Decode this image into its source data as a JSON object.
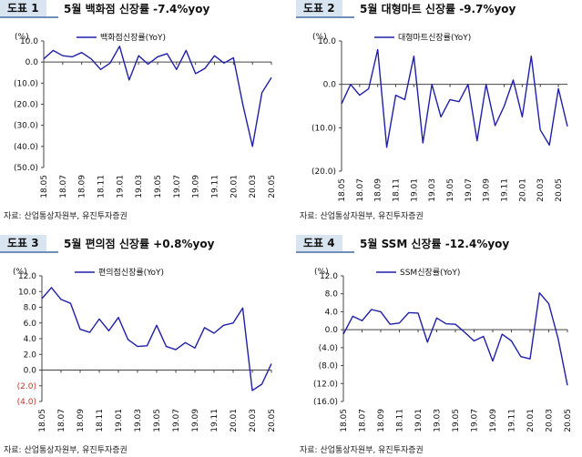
{
  "source_label": "자료: 산업통상자원부, 유진투자증권",
  "chart_data": [
    {
      "type": "line",
      "badge": "도표 1",
      "title": "5월 백화점 신장률 -7.4%yoy",
      "unit_label": "(%)",
      "legend": "백화점신장률(YoY)",
      "color": "#1f1fa8",
      "ylim": [
        -50,
        10
      ],
      "yticks": [
        10,
        0,
        -10,
        -20,
        -30,
        -40,
        -50
      ],
      "ytick_labels": [
        "10.0",
        "0.0",
        "(10.0)",
        "(20.0)",
        "(30.0)",
        "(40.0)",
        "(50.0)"
      ],
      "xtick_labels": [
        "18.05",
        "18.07",
        "18.09",
        "18.11",
        "19.01",
        "19.03",
        "19.05",
        "19.07",
        "19.09",
        "19.11",
        "20.01",
        "20.03",
        "20.05"
      ],
      "values": [
        1.5,
        5.5,
        3.0,
        2.5,
        4.5,
        1.5,
        -3.5,
        -0.5,
        7.5,
        -8.5,
        3.0,
        -1.0,
        2.5,
        4.0,
        -3.5,
        5.5,
        -5.5,
        -3.0,
        3.0,
        -0.5,
        2.0,
        -20.5,
        -40.0,
        -14.5,
        -7.4
      ]
    },
    {
      "type": "line",
      "badge": "도표 2",
      "title": "5월 대형마트 신장률 -9.7%yoy",
      "unit_label": "(%)",
      "legend": "대형마트신장률(YoY)",
      "color": "#1f1fa8",
      "ylim": [
        -20,
        10
      ],
      "yticks": [
        10,
        0,
        -10,
        -20
      ],
      "ytick_labels": [
        "10.0",
        "0.0",
        "(10.0)",
        "(20.0)"
      ],
      "xtick_labels": [
        "18.05",
        "18.07",
        "18.09",
        "18.11",
        "19.01",
        "19.03",
        "19.05",
        "19.07",
        "19.09",
        "19.11",
        "20.01",
        "20.03",
        "20.05"
      ],
      "values": [
        -4.5,
        0.0,
        -2.5,
        -1.0,
        8.0,
        -14.5,
        -2.5,
        -3.5,
        6.5,
        -13.5,
        0.0,
        -7.5,
        -3.5,
        -4.0,
        0.0,
        -13.0,
        0.0,
        -9.5,
        -5.0,
        1.0,
        -7.5,
        6.5,
        -10.5,
        -14.0,
        -1.0,
        -9.7
      ]
    },
    {
      "type": "line",
      "badge": "도표 3",
      "title": "5월 편의점 신장률 +0.8%yoy",
      "unit_label": "(%)",
      "legend": "편의점신장률(YoY)",
      "color": "#1f1fa8",
      "ylim": [
        -4,
        12
      ],
      "yticks": [
        12,
        10,
        8,
        6,
        4,
        2,
        0,
        -2,
        -4
      ],
      "ytick_labels": [
        "12.0",
        "10.0",
        "8.0",
        "6.0",
        "4.0",
        "2.0",
        "0.0",
        "(2.0)",
        "(4.0)"
      ],
      "ytick_colors": [
        "#111",
        "#111",
        "#111",
        "#111",
        "#111",
        "#111",
        "#111",
        "#c0392b",
        "#c0392b"
      ],
      "xtick_labels": [
        "18.05",
        "18.07",
        "18.09",
        "18.11",
        "19.01",
        "19.03",
        "19.05",
        "19.07",
        "19.09",
        "19.11",
        "20.01",
        "20.03",
        "20.05"
      ],
      "values": [
        9.1,
        10.5,
        9.0,
        8.5,
        5.2,
        4.8,
        6.5,
        5.0,
        6.7,
        3.9,
        3.0,
        3.1,
        5.7,
        3.0,
        2.6,
        3.5,
        2.8,
        5.4,
        4.7,
        5.7,
        6.0,
        7.9,
        -2.6,
        -1.8,
        0.8
      ]
    },
    {
      "type": "line",
      "badge": "도표 4",
      "title": "5월 SSM 신장률 -12.4%yoy",
      "unit_label": "(%)",
      "legend": "SSM신장률(YoY)",
      "color": "#1f1fa8",
      "ylim": [
        -16,
        12
      ],
      "yticks": [
        12,
        8,
        4,
        0,
        -4,
        -8,
        -12,
        -16
      ],
      "ytick_labels": [
        "12.0",
        "8.0",
        "4.0",
        "0.0",
        "(4.0)",
        "(8.0)",
        "(12.0)",
        "(16.0)"
      ],
      "xtick_labels": [
        "18.05",
        "18.07",
        "18.09",
        "18.11",
        "19.01",
        "19.03",
        "19.05",
        "19.07",
        "19.09",
        "19.11",
        "20.01",
        "20.03",
        "20.05"
      ],
      "values": [
        -1.0,
        3.0,
        2.0,
        4.5,
        4.0,
        1.2,
        1.5,
        3.8,
        3.7,
        -2.8,
        2.6,
        1.3,
        1.2,
        -0.6,
        -2.5,
        -1.5,
        -7.0,
        -1.0,
        -2.5,
        -6.0,
        -6.5,
        8.2,
        5.8,
        -2.0,
        -12.4
      ]
    }
  ]
}
